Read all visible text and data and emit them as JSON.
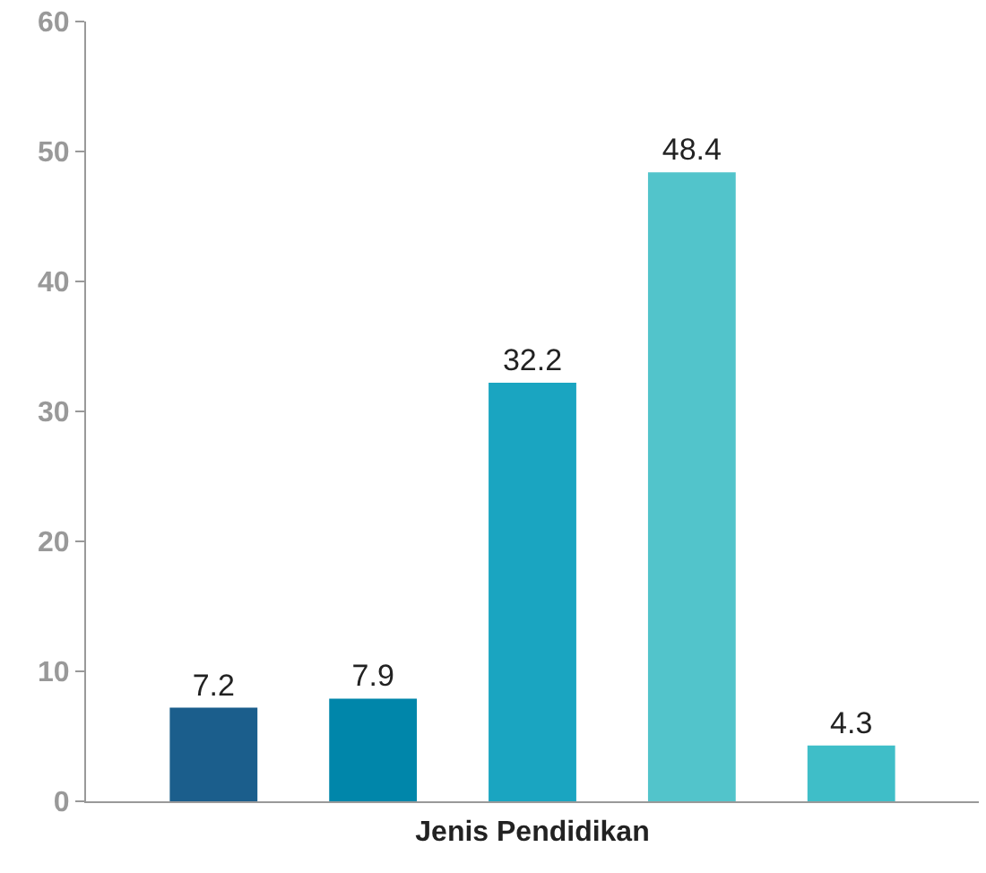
{
  "chart_data": {
    "type": "bar",
    "xlabel": "Jenis Pendidikan",
    "categories": [
      null,
      null,
      null,
      null,
      null
    ],
    "values": [
      7.2,
      7.9,
      32.2,
      48.4,
      4.3
    ],
    "colors": [
      "#1b5e8c",
      "#0086aa",
      "#1aa5c1",
      "#52c4cb",
      "#3fbec8"
    ],
    "ylim": [
      0,
      60
    ],
    "yticks": [
      0,
      10,
      20,
      30,
      40,
      50,
      60
    ],
    "grid": false,
    "data_labels": true
  }
}
